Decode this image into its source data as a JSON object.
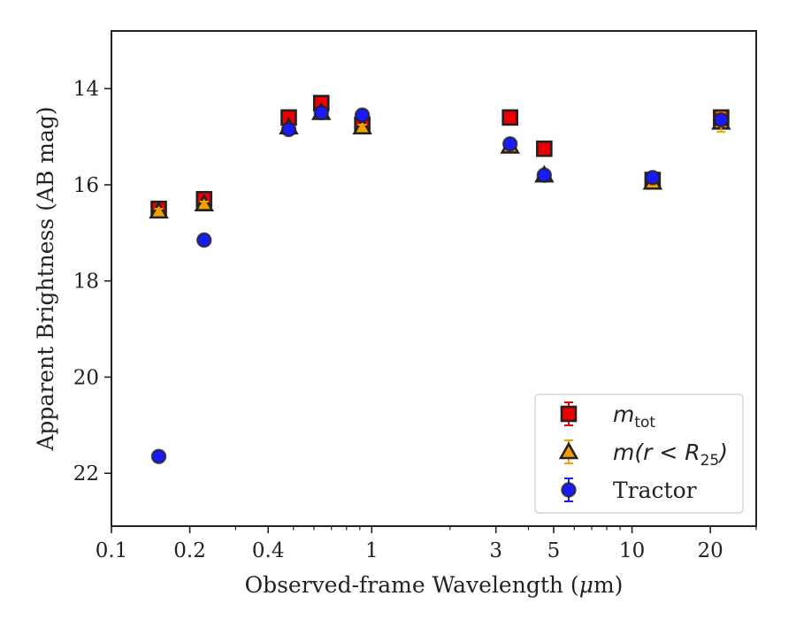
{
  "chart_data": {
    "type": "scatter",
    "xlabel_pre": "Observed-frame Wavelength (",
    "xlabel_mu": "μ",
    "xlabel_post": "m)",
    "ylabel": "Apparent Brightness (AB mag)",
    "xscale": "log",
    "xlim": [
      0.1,
      30
    ],
    "ylim": [
      23.1,
      12.8
    ],
    "y_inverted": true,
    "x_tick_labels": [
      "0.1",
      "0.2",
      "0.4",
      "1",
      "3",
      "5",
      "10",
      "20"
    ],
    "x_tick_values": [
      0.1,
      0.2,
      0.4,
      1,
      3,
      5,
      10,
      20
    ],
    "y_tick_labels": [
      "14",
      "16",
      "18",
      "20",
      "22"
    ],
    "y_tick_values": [
      14,
      16,
      18,
      20,
      22
    ],
    "grid": false,
    "legend_position": "lower right",
    "colors": {
      "mtot": "#ee0000",
      "mr": "#f5a000",
      "tractor": "#1a1aff",
      "edge": "#222222"
    },
    "series": [
      {
        "key": "mtot",
        "marker": "square",
        "x": [
          0.152,
          0.227,
          0.48,
          0.64,
          0.92,
          3.4,
          4.6,
          12.0,
          22.0
        ],
        "y": [
          16.5,
          16.3,
          14.6,
          14.3,
          14.75,
          14.6,
          15.25,
          15.9,
          14.6
        ],
        "err": [
          0.1,
          0.1,
          0.05,
          0.05,
          0.05,
          0.05,
          0.05,
          0.05,
          0.05
        ]
      },
      {
        "key": "mr",
        "marker": "triangle",
        "x": [
          0.152,
          0.227,
          0.48,
          0.64,
          0.92,
          3.4,
          4.6,
          12.0,
          22.0
        ],
        "y": [
          16.55,
          16.4,
          14.8,
          14.5,
          14.8,
          15.2,
          15.8,
          15.95,
          14.7
        ],
        "err": [
          0.05,
          0.05,
          0.05,
          0.05,
          0.05,
          0.05,
          0.05,
          0.05,
          0.2
        ]
      },
      {
        "key": "tractor",
        "marker": "circle",
        "x": [
          0.152,
          0.227,
          0.48,
          0.64,
          0.92,
          3.4,
          4.6,
          12.0,
          22.0
        ],
        "y": [
          21.65,
          17.15,
          14.85,
          14.5,
          14.55,
          15.15,
          15.8,
          15.85,
          14.65
        ],
        "err": [
          0.05,
          0.05,
          0.05,
          0.05,
          0.05,
          0.05,
          0.05,
          0.05,
          0.05
        ]
      }
    ],
    "legend": [
      {
        "key": "mtot",
        "prefix": "m",
        "sub": "tot",
        "suffix": ""
      },
      {
        "key": "mr",
        "prefix": "m(r < R",
        "sub": "25",
        "suffix": ")"
      },
      {
        "key": "tractor",
        "text": "Tractor"
      }
    ]
  }
}
